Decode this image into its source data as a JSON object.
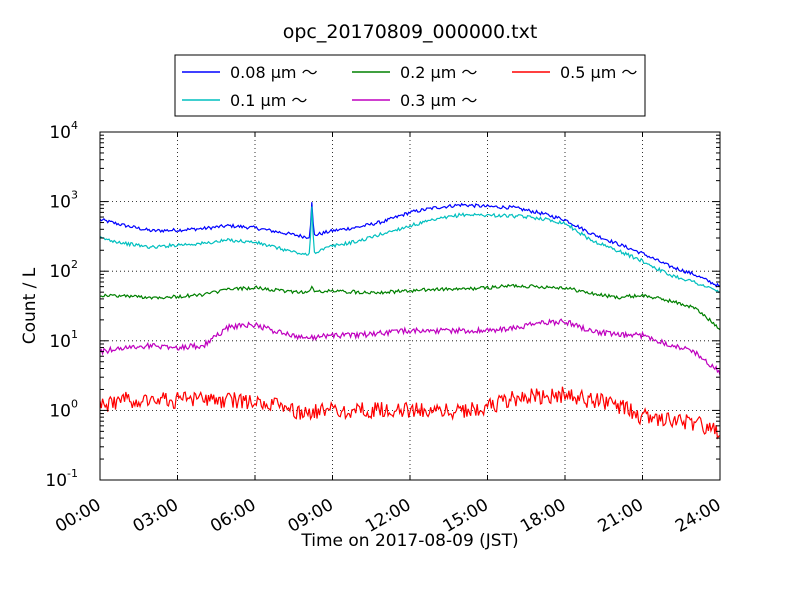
{
  "chart_data": {
    "type": "line",
    "title": "opc_20170809_000000.txt",
    "xlabel": "Time on 2017-08-09 (JST)",
    "ylabel": "Count / L",
    "yscale": "log",
    "xlim_hours": [
      0,
      24
    ],
    "ylim": [
      0.1,
      10000
    ],
    "grid": true,
    "legend_placement": "top-center",
    "x_ticks": [
      "00:00",
      "03:00",
      "06:00",
      "09:00",
      "12:00",
      "15:00",
      "18:00",
      "21:00",
      "24:00"
    ],
    "y_ticks": [
      {
        "base": "10",
        "exp": "-1"
      },
      {
        "base": "10",
        "exp": "0"
      },
      {
        "base": "10",
        "exp": "1"
      },
      {
        "base": "10",
        "exp": "2"
      },
      {
        "base": "10",
        "exp": "3"
      },
      {
        "base": "10",
        "exp": "4"
      }
    ],
    "x_hours": [
      0,
      1,
      2,
      3,
      4,
      5,
      6,
      7,
      8,
      9,
      10,
      11,
      12,
      13,
      14,
      15,
      16,
      17,
      18,
      19,
      20,
      21,
      22,
      23,
      24
    ],
    "series": [
      {
        "name": "0.08 μm ～",
        "color": "#0000ff",
        "values": [
          550,
          450,
          380,
          390,
          410,
          450,
          420,
          360,
          310,
          380,
          430,
          520,
          700,
          820,
          900,
          850,
          820,
          690,
          550,
          350,
          250,
          180,
          120,
          90,
          60
        ],
        "spikes": [
          {
            "x": 8.2,
            "y": 950
          }
        ]
      },
      {
        "name": "0.1 μm ～",
        "color": "#00bfbf",
        "values": [
          300,
          250,
          220,
          240,
          250,
          280,
          260,
          210,
          170,
          230,
          270,
          350,
          450,
          550,
          650,
          640,
          620,
          580,
          490,
          280,
          200,
          140,
          90,
          70,
          50
        ],
        "spikes": [
          {
            "x": 8.2,
            "y": 900
          }
        ]
      },
      {
        "name": "0.2 μm ～",
        "color": "#008000",
        "values": [
          45,
          44,
          42,
          43,
          46,
          55,
          58,
          52,
          50,
          52,
          50,
          50,
          52,
          55,
          55,
          58,
          62,
          60,
          58,
          48,
          42,
          45,
          38,
          30,
          15
        ],
        "spikes": [
          {
            "x": 8.2,
            "y": 62
          }
        ]
      },
      {
        "name": "0.3 μm ～",
        "color": "#bf00bf",
        "values": [
          7,
          8,
          8.5,
          8,
          8.5,
          16,
          17,
          13,
          11,
          12,
          12,
          13,
          14,
          14,
          14,
          14,
          15,
          18,
          19,
          14,
          12,
          12,
          9,
          7,
          3.5
        ]
      },
      {
        "name": "0.5 μm ～",
        "color": "#ff0000",
        "values": [
          1.2,
          1.4,
          1.5,
          1.4,
          1.4,
          1.4,
          1.3,
          1.1,
          0.9,
          1.0,
          1.0,
          1.0,
          1.0,
          1.0,
          1.0,
          1.1,
          1.5,
          1.6,
          1.7,
          1.4,
          1.2,
          0.8,
          0.75,
          0.65,
          0.5
        ]
      }
    ]
  }
}
